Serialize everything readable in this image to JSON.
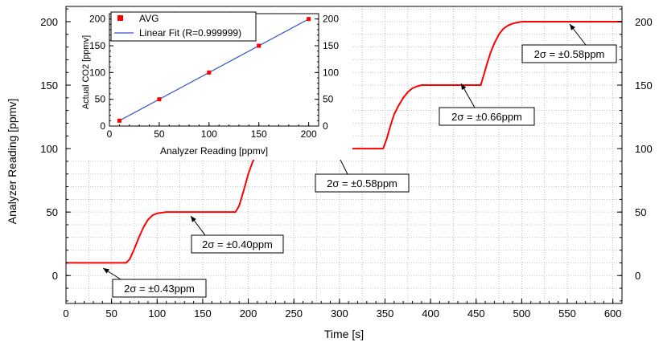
{
  "chart_data": [
    {
      "id": "main",
      "type": "line",
      "title": "",
      "xlabel": "Time [s]",
      "ylabel": "Analyzer Reading [ppmv]",
      "xlim": [
        0,
        610
      ],
      "ylim": [
        -22,
        212
      ],
      "xticks": [
        0,
        50,
        100,
        150,
        200,
        250,
        300,
        350,
        400,
        450,
        500,
        550,
        600
      ],
      "yticks": [
        0,
        50,
        100,
        150,
        200
      ],
      "grid": true,
      "series": [
        {
          "name": "",
          "color": "#ff0000",
          "x": [
            0,
            66,
            70,
            75,
            80,
            85,
            90,
            95,
            100,
            105,
            110,
            130,
            160,
            186,
            190,
            195,
            200,
            205,
            210,
            215,
            220,
            230,
            260,
            300,
            348,
            352,
            356,
            360,
            365,
            370,
            375,
            380,
            385,
            390,
            400,
            430,
            455,
            458,
            462,
            466,
            470,
            475,
            480,
            485,
            490,
            495,
            500,
            540,
            580,
            610
          ],
          "y": [
            10,
            10,
            13,
            21,
            30,
            38,
            44,
            47.5,
            49,
            49.5,
            50,
            50,
            50,
            50,
            55,
            67,
            80,
            90,
            96,
            98.5,
            99.5,
            100,
            100,
            100,
            100,
            108,
            118,
            127,
            134,
            140,
            144.5,
            147.5,
            149,
            150,
            150,
            150,
            150,
            157,
            167,
            176,
            183,
            190,
            194.5,
            197,
            198.5,
            199.3,
            200,
            200,
            200,
            200
          ]
        }
      ],
      "annotations": [
        {
          "text": "2σ = ±0.43ppm"
        },
        {
          "text": "2σ = ±0.40ppm"
        },
        {
          "text": "2σ = ±0.58ppm"
        },
        {
          "text": "2σ = ±0.66ppm"
        },
        {
          "text": "2σ = ±0.58ppm"
        }
      ]
    },
    {
      "id": "inset",
      "type": "scatter",
      "title": "",
      "xlabel": "Analyzer Reading [ppmv]",
      "ylabel": "Actual CO2 [ppmv]",
      "xlim": [
        0,
        210
      ],
      "ylim": [
        0,
        210
      ],
      "xticks": [
        0,
        50,
        100,
        150,
        200
      ],
      "yticks": [
        0,
        50,
        100,
        150,
        200
      ],
      "grid": false,
      "legend": "top-left",
      "series": [
        {
          "name": "AVG",
          "type": "scatter",
          "color": "#ff0000",
          "x": [
            10,
            50,
            100,
            150,
            200
          ],
          "y": [
            10,
            50,
            100,
            150,
            200
          ]
        },
        {
          "name": "Linear Fit (R=0.999999)",
          "type": "line",
          "color": "#3355cc",
          "x": [
            10,
            200
          ],
          "y": [
            10,
            200
          ]
        }
      ]
    }
  ]
}
